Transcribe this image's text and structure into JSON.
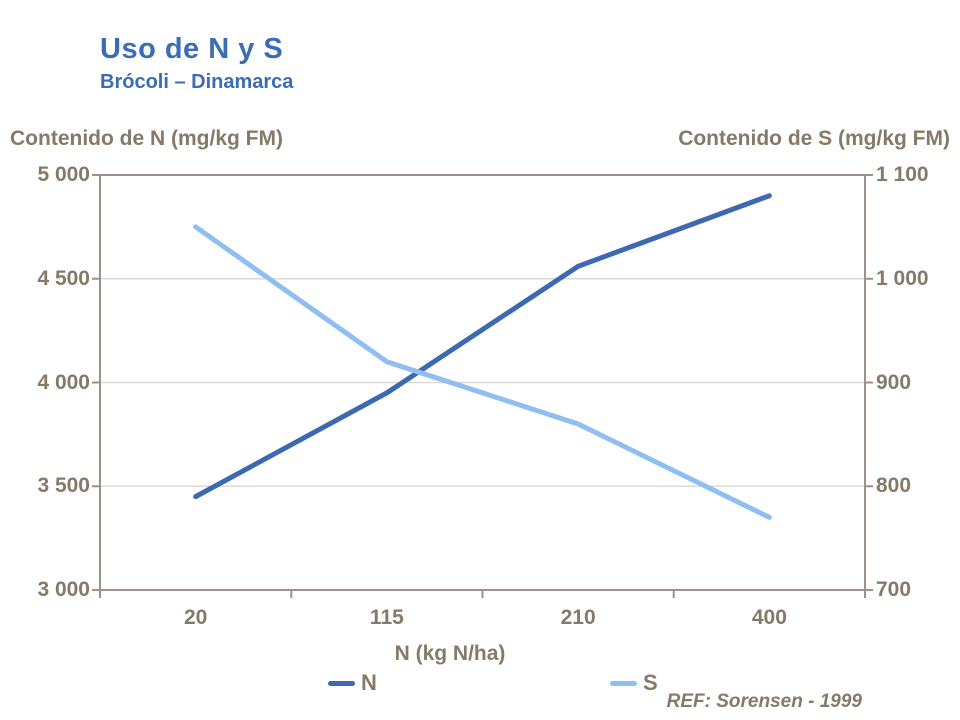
{
  "slide": {
    "title": "Uso de N y S",
    "subtitle": "Brócoli – Dinamarca",
    "ref": "REF: Sorensen - 1999"
  },
  "colors": {
    "title_blue": "#3a6cb7",
    "text_taupe": "#857a68",
    "axis_line": "#9c9386",
    "gridline": "#dcdad6",
    "series_n": "#3d69b3",
    "series_s": "#8fbef3",
    "background": "#ffffff"
  },
  "chart_data": {
    "type": "line",
    "title": "Uso de N y S — Brócoli – Dinamarca",
    "categories": [
      "20",
      "115",
      "210",
      "400"
    ],
    "xlabel": "N (kg N/ha)",
    "grid": true,
    "legend_position": "bottom",
    "left_axis": {
      "title": "Contenido de N (mg/kg FM)",
      "min": 3000,
      "max": 5000,
      "tick_labels": [
        "5 000",
        "4 500",
        "4 000",
        "3 500",
        "3 000"
      ]
    },
    "right_axis": {
      "title": "Contenido de S (mg/kg FM)",
      "min": 700,
      "max": 1100,
      "tick_labels": [
        "1 100",
        "1 000",
        "900",
        "800",
        "700"
      ]
    },
    "series": [
      {
        "name": "N",
        "axis": "left",
        "color": "#3d69b3",
        "values": [
          3450,
          3950,
          4560,
          4900
        ]
      },
      {
        "name": "S",
        "axis": "right",
        "color": "#8fbef3",
        "values": [
          1050,
          920,
          860,
          770
        ]
      }
    ]
  }
}
